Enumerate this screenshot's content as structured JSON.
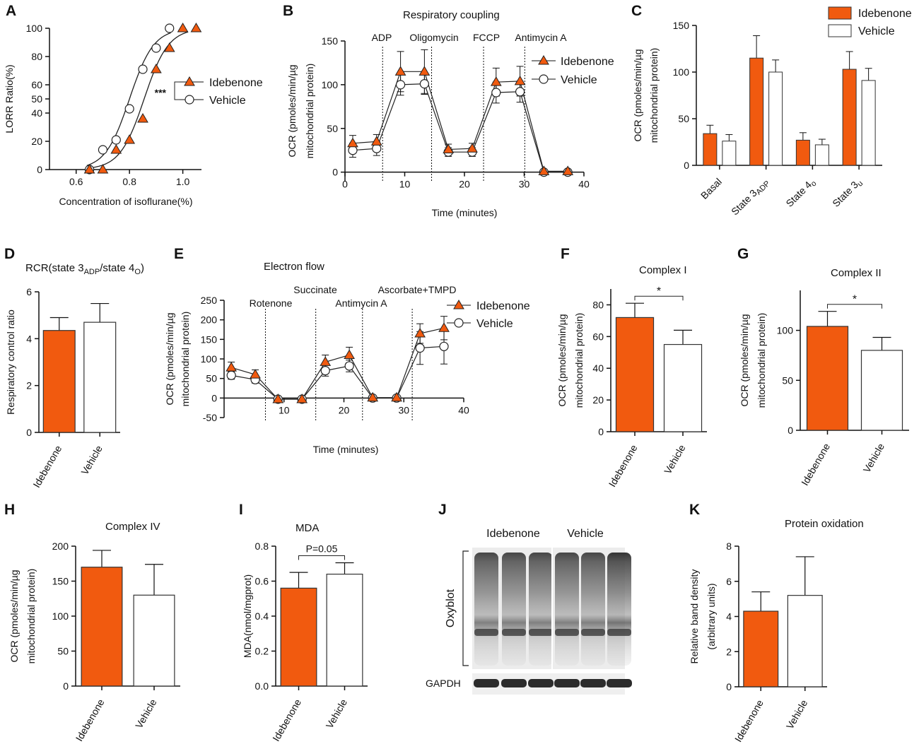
{
  "colors": {
    "idebenone": "#F15A0F",
    "vehicle": "#FFFFFF",
    "line": "#111111"
  },
  "legend": {
    "idebenone": "Idebenone",
    "vehicle": "Vehicle"
  },
  "chart_data": [
    {
      "id": "A",
      "panel_label": "A",
      "type": "line",
      "xlabel": "Concentration of isoflurane(%)",
      "ylabel": "LORR Ratio(%)",
      "xlim": [
        0.5,
        1.07
      ],
      "ylim": [
        0,
        100
      ],
      "xticks": [
        0.6,
        0.8,
        1.0
      ],
      "xtick_labels": [
        "0.6",
        "0.8",
        "1.0"
      ],
      "yticks": [
        0,
        20,
        40,
        50,
        60,
        80,
        100
      ],
      "ytick_labels": [
        "0",
        "20",
        "40",
        "50",
        "60",
        "80",
        "100"
      ],
      "significance": "***",
      "series": [
        {
          "name": "Idebenone",
          "marker": "triangle",
          "x": [
            0.65,
            0.7,
            0.75,
            0.8,
            0.85,
            0.9,
            0.95,
            1.0,
            1.05
          ],
          "y": [
            0,
            0,
            14,
            21,
            36,
            71,
            86,
            100,
            100
          ]
        },
        {
          "name": "Vehicle",
          "marker": "circle",
          "x": [
            0.65,
            0.7,
            0.75,
            0.8,
            0.85,
            0.9,
            0.95
          ],
          "y": [
            0,
            14,
            21,
            43,
            71,
            86,
            100
          ]
        }
      ]
    },
    {
      "id": "B",
      "panel_label": "B",
      "type": "line",
      "title": "Respiratory coupling",
      "xlabel": "Time (minutes)",
      "ylabel": [
        "OCR (pmoles/min/µg",
        "mitochondrial protein)"
      ],
      "xlim": [
        0,
        40
      ],
      "ylim": [
        -10,
        150
      ],
      "xticks": [
        0,
        10,
        20,
        30,
        40
      ],
      "yticks": [
        0,
        50,
        100,
        150
      ],
      "events": [
        {
          "x": 6.3,
          "label": "ADP"
        },
        {
          "x": 14.5,
          "label": "Oligomycin"
        },
        {
          "x": 23.2,
          "label": "FCCP"
        },
        {
          "x": 30.1,
          "label": "Antimycin A"
        }
      ],
      "series": [
        {
          "name": "Idebenone",
          "marker": "triangle",
          "x": [
            1.3,
            5.3,
            9.3,
            13.3,
            17.3,
            21.3,
            25.3,
            29.3,
            33.3,
            37.3
          ],
          "y": [
            33,
            35,
            115,
            115,
            26,
            27,
            103,
            104,
            1,
            1
          ],
          "err": [
            9,
            8,
            23,
            25,
            6,
            6,
            16,
            17,
            2,
            2
          ]
        },
        {
          "name": "Vehicle",
          "marker": "circle",
          "x": [
            1.3,
            5.3,
            9.3,
            13.3,
            17.3,
            21.3,
            25.3,
            29.3,
            33.3,
            37.3
          ],
          "y": [
            25,
            27,
            100,
            101,
            23,
            23,
            91,
            92,
            0,
            0
          ],
          "err": [
            8,
            8,
            12,
            12,
            5,
            5,
            12,
            12,
            2,
            2
          ]
        }
      ]
    },
    {
      "id": "C",
      "panel_label": "C",
      "type": "bar",
      "ylabel": [
        "OCR (pmoles/min/µg",
        "mitochondrial protein)"
      ],
      "ylim": [
        0,
        150
      ],
      "yticks": [
        0,
        50,
        100,
        150
      ],
      "categories": [
        "Basal",
        "State 3ADP",
        "State 4o",
        "State 3u"
      ],
      "series": [
        {
          "name": "Idebenone",
          "values": [
            34,
            115,
            27,
            103
          ],
          "err": [
            9,
            24,
            8,
            19
          ]
        },
        {
          "name": "Vehicle",
          "values": [
            26,
            100,
            22,
            91
          ],
          "err": [
            7,
            13,
            6,
            13
          ]
        }
      ]
    },
    {
      "id": "D",
      "panel_label": "D",
      "type": "bar",
      "title": "RCR(state 3ADP/state 4O)",
      "ylabel": "Respiratory control ratio",
      "ylim": [
        0,
        6
      ],
      "yticks": [
        0,
        2,
        4,
        6
      ],
      "categories": [
        "Idebenone",
        "Vehicle"
      ],
      "values": [
        4.35,
        4.7
      ],
      "err": [
        0.55,
        0.8
      ]
    },
    {
      "id": "E",
      "panel_label": "E",
      "type": "line",
      "title": "Electron flow",
      "xlabel": "Time (minutes)",
      "ylabel": [
        "OCR (pmoles/min/µg",
        "mitochondrial protein)"
      ],
      "xlim": [
        0,
        40
      ],
      "ylim": [
        -50,
        250
      ],
      "xticks": [
        10,
        20,
        30,
        40
      ],
      "yticks": [
        -50,
        0,
        50,
        100,
        150,
        200,
        250
      ],
      "events": [
        {
          "x": 6.9,
          "label": "Rotenone"
        },
        {
          "x": 15.3,
          "label": "Succinate"
        },
        {
          "x": 23.1,
          "label": "Antimycin A"
        },
        {
          "x": 31.4,
          "label": "Ascorbate+TMPD"
        }
      ],
      "series": [
        {
          "name": "Idebenone",
          "marker": "triangle",
          "x": [
            1.2,
            5.2,
            9.0,
            13.0,
            16.9,
            20.9,
            24.8,
            28.8,
            32.7,
            36.7
          ],
          "y": [
            78,
            60,
            -3,
            -3,
            92,
            110,
            1,
            1,
            165,
            179
          ],
          "err": [
            14,
            12,
            3,
            3,
            18,
            20,
            3,
            3,
            25,
            30
          ]
        },
        {
          "name": "Vehicle",
          "marker": "circle",
          "x": [
            1.2,
            5.2,
            9.0,
            13.0,
            16.9,
            20.9,
            24.8,
            28.8,
            32.7,
            36.7
          ],
          "y": [
            58,
            47,
            -3,
            -3,
            70,
            82,
            0,
            0,
            128,
            132
          ],
          "err": [
            10,
            9,
            3,
            3,
            14,
            15,
            3,
            3,
            42,
            45
          ]
        }
      ]
    },
    {
      "id": "F",
      "panel_label": "F",
      "type": "bar",
      "title": "Complex I",
      "ylabel": [
        "OCR (pmoles/min/µg",
        "mitochondrial protein)"
      ],
      "ylim": [
        0,
        90
      ],
      "yticks": [
        0,
        20,
        40,
        60,
        80
      ],
      "categories": [
        "Idebenone",
        "Vehicle"
      ],
      "values": [
        72,
        55
      ],
      "err": [
        9,
        9
      ],
      "significance": "*"
    },
    {
      "id": "G",
      "panel_label": "G",
      "type": "bar",
      "title": "Complex II",
      "ylabel": [
        "OCR (pmoles/min/µg",
        "mitochondrial protein)"
      ],
      "ylim": [
        0,
        140
      ],
      "yticks": [
        0,
        50,
        100
      ],
      "categories": [
        "Idebenone",
        "Vehicle"
      ],
      "values": [
        104,
        80
      ],
      "err": [
        15,
        13
      ],
      "significance": "*"
    },
    {
      "id": "H",
      "panel_label": "H",
      "type": "bar",
      "title": "Complex IV",
      "ylabel": [
        "OCR (pmoles/min/µg",
        "mitochondrial protein)"
      ],
      "ylim": [
        0,
        200
      ],
      "yticks": [
        0,
        50,
        100,
        150,
        200
      ],
      "categories": [
        "Idebenone",
        "Vehicle"
      ],
      "values": [
        170,
        130
      ],
      "err": [
        24,
        44
      ]
    },
    {
      "id": "I",
      "panel_label": "I",
      "type": "bar",
      "title": "MDA",
      "ylabel": "MDA(nmol/mgprot)",
      "ylim": [
        0,
        0.8
      ],
      "yticks": [
        0,
        0.2,
        0.4,
        0.6,
        0.8
      ],
      "ytick_labels": [
        "0.0",
        "0.2",
        "0.4",
        "0.6",
        "0.8"
      ],
      "categories": [
        "Idebenone",
        "Vehicle"
      ],
      "values": [
        0.56,
        0.64
      ],
      "err": [
        0.09,
        0.065
      ],
      "significance": "P=0.05"
    },
    {
      "id": "K",
      "panel_label": "K",
      "type": "bar",
      "title": "Protein oxidation",
      "ylabel": [
        "Relative band density",
        "(arbitrary units)"
      ],
      "ylim": [
        0,
        8
      ],
      "yticks": [
        0,
        2,
        4,
        6,
        8
      ],
      "categories": [
        "Idebenone",
        "Vehicle"
      ],
      "values": [
        4.3,
        5.2
      ],
      "err": [
        1.1,
        2.2
      ]
    }
  ],
  "blot": {
    "panel_label": "J",
    "groups": [
      "Idebenone",
      "Vehicle"
    ],
    "bands": [
      "Oxyblot",
      "GAPDH"
    ]
  }
}
